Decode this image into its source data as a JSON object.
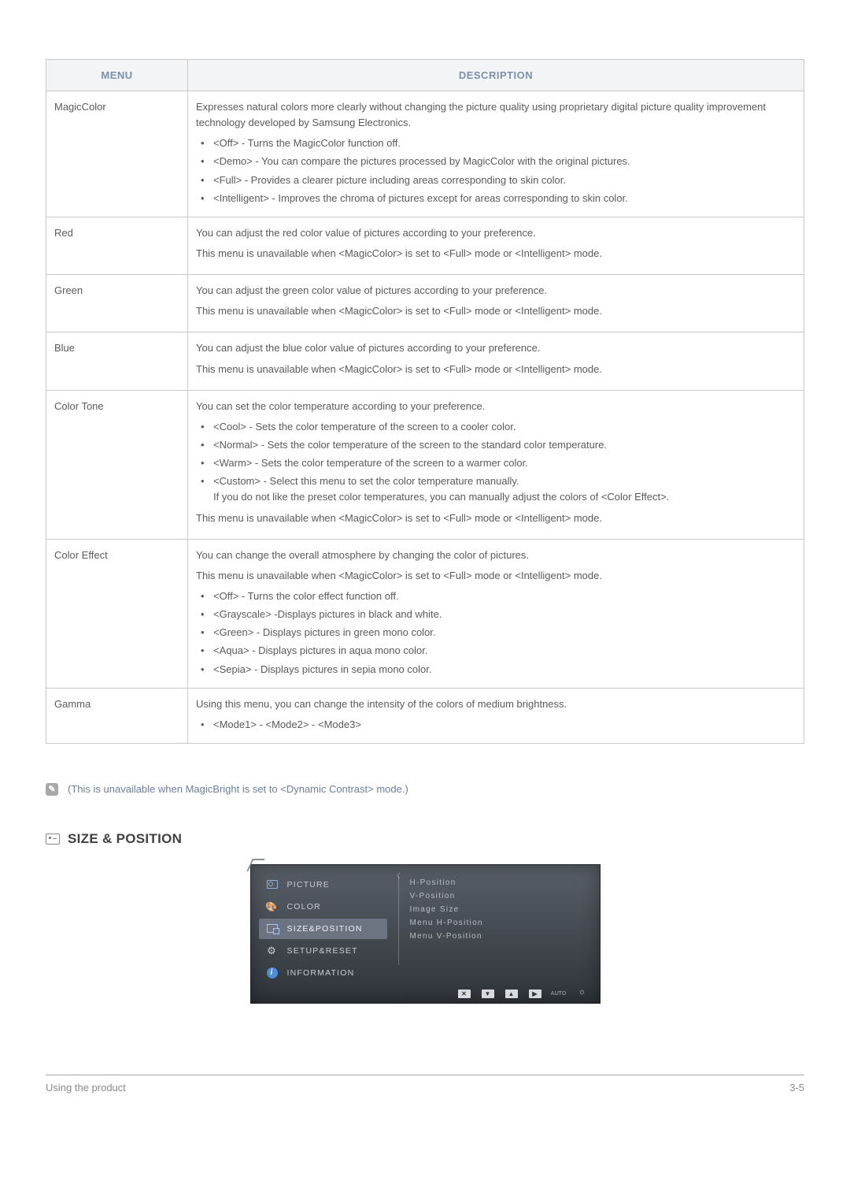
{
  "table": {
    "header_menu": "MENU",
    "header_desc": "DESCRIPTION",
    "rows": [
      {
        "menu": "MagicColor",
        "intro": "Expresses natural colors more clearly without changing the picture quality using proprietary digital picture quality improvement technology developed by Samsung Electronics.",
        "bullets": [
          "<Off> - Turns the MagicColor function off.",
          "<Demo> - You can compare the pictures processed by MagicColor with the original pictures.",
          "<Full> - Provides a clearer picture including areas corresponding to skin color.",
          "<Intelligent> - Improves the chroma of pictures except for areas corresponding to skin color."
        ]
      },
      {
        "menu": "Red",
        "lines": [
          "You can adjust the red color value of pictures according to your preference.",
          "This menu is unavailable when <MagicColor> is set to <Full> mode or <Intelligent> mode."
        ]
      },
      {
        "menu": "Green",
        "lines": [
          "You can adjust the green color value of pictures according to your preference.",
          "This menu is unavailable when <MagicColor> is set to <Full> mode or <Intelligent> mode."
        ]
      },
      {
        "menu": "Blue",
        "lines": [
          "You can adjust the blue color value of pictures according to your preference.",
          "This menu is unavailable when <MagicColor> is set to <Full> mode or <Intelligent> mode."
        ]
      },
      {
        "menu": "Color Tone",
        "intro": "You can set the color temperature according to your preference.",
        "bullets": [
          "<Cool> - Sets the color temperature of the screen to a cooler color.",
          "<Normal> - Sets the color temperature of the screen to the standard color temperature.",
          "<Warm> - Sets the color temperature of the screen to a warmer color.",
          "<Custom> - Select this menu to set the color temperature manually.\nIf you do not like the preset color temperatures, you can manually adjust the colors of <Color Effect>."
        ],
        "outro": "This menu is unavailable when <MagicColor> is set to <Full> mode or <Intelligent> mode."
      },
      {
        "menu": "Color Effect",
        "lines": [
          "You can change the overall atmosphere by changing the color of pictures.",
          "This menu is unavailable when <MagicColor> is set to <Full> mode or <Intelligent> mode."
        ],
        "bullets": [
          "<Off> - Turns the color effect function off.",
          "<Grayscale> -Displays pictures in black and white.",
          "<Green> - Displays pictures in green mono color.",
          "<Aqua> - Displays pictures in aqua mono color.",
          "<Sepia> - Displays pictures in sepia mono color."
        ]
      },
      {
        "menu": "Gamma",
        "intro": "Using this menu, you can change the intensity of the colors of medium brightness.",
        "bullets": [
          "<Mode1> - <Mode2> - <Mode3>"
        ]
      }
    ]
  },
  "note_text": "(This is unavailable when MagicBright is set to <Dynamic Contrast> mode.)",
  "section_title": "SIZE & POSITION",
  "osd": {
    "left_items": [
      {
        "label": "PICTURE",
        "icon": "picture",
        "active": false
      },
      {
        "label": "COLOR",
        "icon": "color",
        "active": false
      },
      {
        "label": "SIZE&POSITION",
        "icon": "size",
        "active": true
      },
      {
        "label": "SETUP&RESET",
        "icon": "setup",
        "active": false
      },
      {
        "label": "INFORMATION",
        "icon": "info",
        "active": false
      }
    ],
    "right_items": [
      "H-Position",
      "V-Position",
      "Image Size",
      "Menu H-Position",
      "Menu V-Position"
    ],
    "controls": [
      "✕",
      "▼",
      "▲",
      "▶",
      "AUTO",
      "⏻"
    ]
  },
  "footer_left": "Using the product",
  "footer_right": "3-5"
}
